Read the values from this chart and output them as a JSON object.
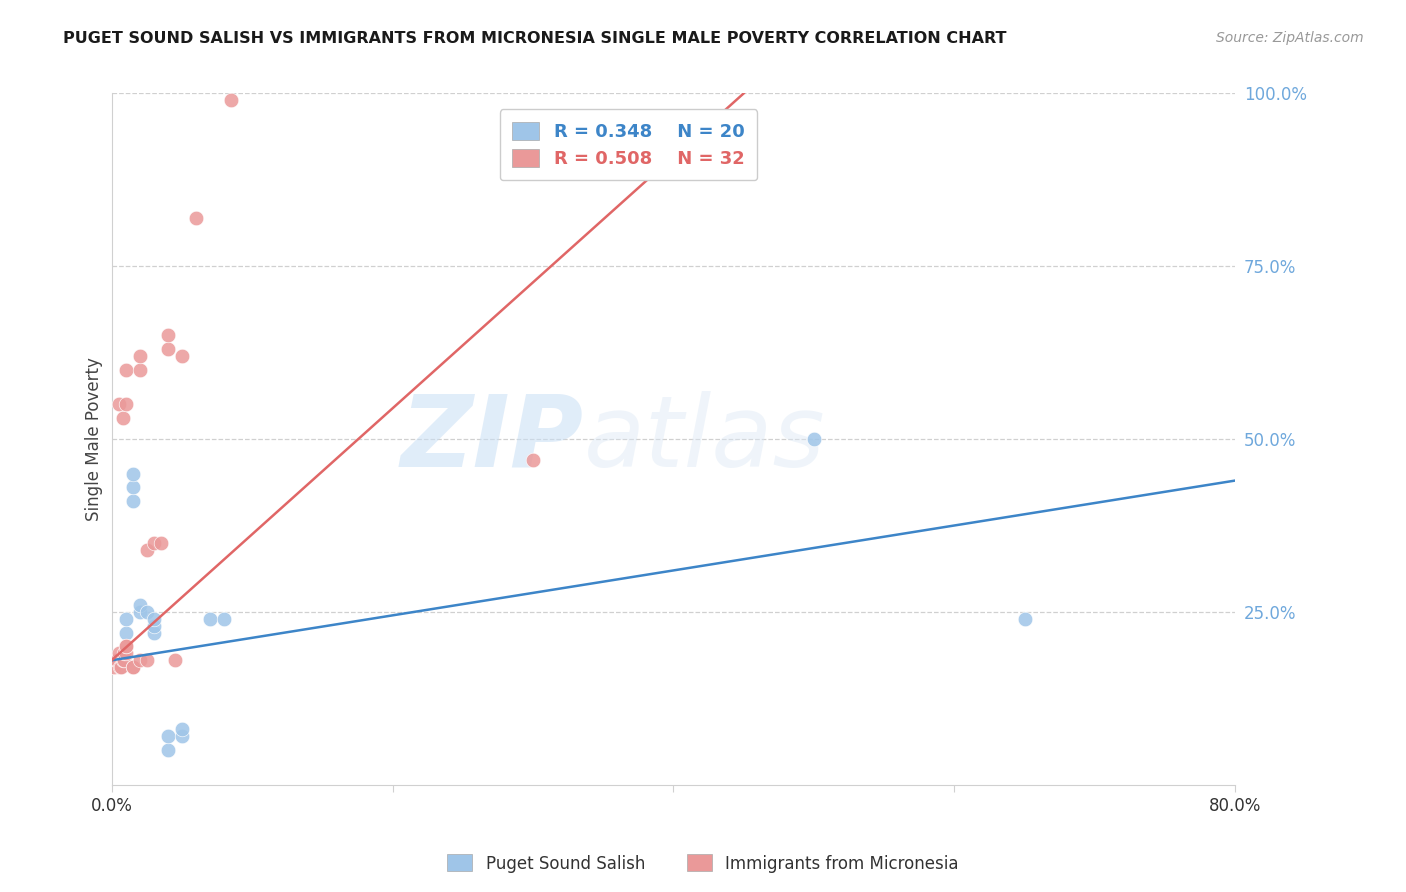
{
  "title": "PUGET SOUND SALISH VS IMMIGRANTS FROM MICRONESIA SINGLE MALE POVERTY CORRELATION CHART",
  "source": "Source: ZipAtlas.com",
  "ylabel": "Single Male Poverty",
  "xlim": [
    0.0,
    0.8
  ],
  "ylim": [
    0.0,
    1.0
  ],
  "blue_color": "#9fc5e8",
  "pink_color": "#ea9999",
  "blue_line_color": "#3d85c8",
  "pink_line_color": "#e06666",
  "legend_blue_r": "R = 0.348",
  "legend_blue_n": "N = 20",
  "legend_pink_r": "R = 0.508",
  "legend_pink_n": "N = 32",
  "watermark_zip": "ZIP",
  "watermark_atlas": "atlas",
  "legend_label_blue": "Puget Sound Salish",
  "legend_label_pink": "Immigrants from Micronesia",
  "blue_scatter_x": [
    0.005,
    0.01,
    0.01,
    0.015,
    0.015,
    0.015,
    0.02,
    0.02,
    0.025,
    0.03,
    0.03,
    0.03,
    0.04,
    0.04,
    0.05,
    0.05,
    0.07,
    0.08,
    0.5,
    0.65
  ],
  "blue_scatter_y": [
    0.18,
    0.22,
    0.24,
    0.41,
    0.43,
    0.45,
    0.25,
    0.26,
    0.25,
    0.22,
    0.23,
    0.24,
    0.05,
    0.07,
    0.07,
    0.08,
    0.24,
    0.24,
    0.5,
    0.24
  ],
  "pink_scatter_x": [
    0.002,
    0.003,
    0.004,
    0.005,
    0.005,
    0.006,
    0.007,
    0.008,
    0.008,
    0.009,
    0.009,
    0.01,
    0.01,
    0.01,
    0.01,
    0.01,
    0.015,
    0.015,
    0.02,
    0.02,
    0.02,
    0.025,
    0.025,
    0.03,
    0.035,
    0.04,
    0.04,
    0.045,
    0.05,
    0.06,
    0.085,
    0.3
  ],
  "pink_scatter_y": [
    0.17,
    0.18,
    0.18,
    0.19,
    0.55,
    0.17,
    0.17,
    0.18,
    0.53,
    0.18,
    0.19,
    0.19,
    0.2,
    0.55,
    0.6,
    0.2,
    0.17,
    0.17,
    0.6,
    0.62,
    0.18,
    0.34,
    0.18,
    0.35,
    0.35,
    0.63,
    0.65,
    0.18,
    0.62,
    0.82,
    0.99,
    0.47
  ],
  "blue_line_x": [
    0.0,
    0.8
  ],
  "blue_line_y": [
    0.18,
    0.44
  ],
  "pink_line_x": [
    0.0,
    0.45
  ],
  "pink_line_y": [
    0.18,
    1.0
  ],
  "background_color": "#ffffff",
  "grid_color": "#d0d0d0",
  "marker_size": 110
}
